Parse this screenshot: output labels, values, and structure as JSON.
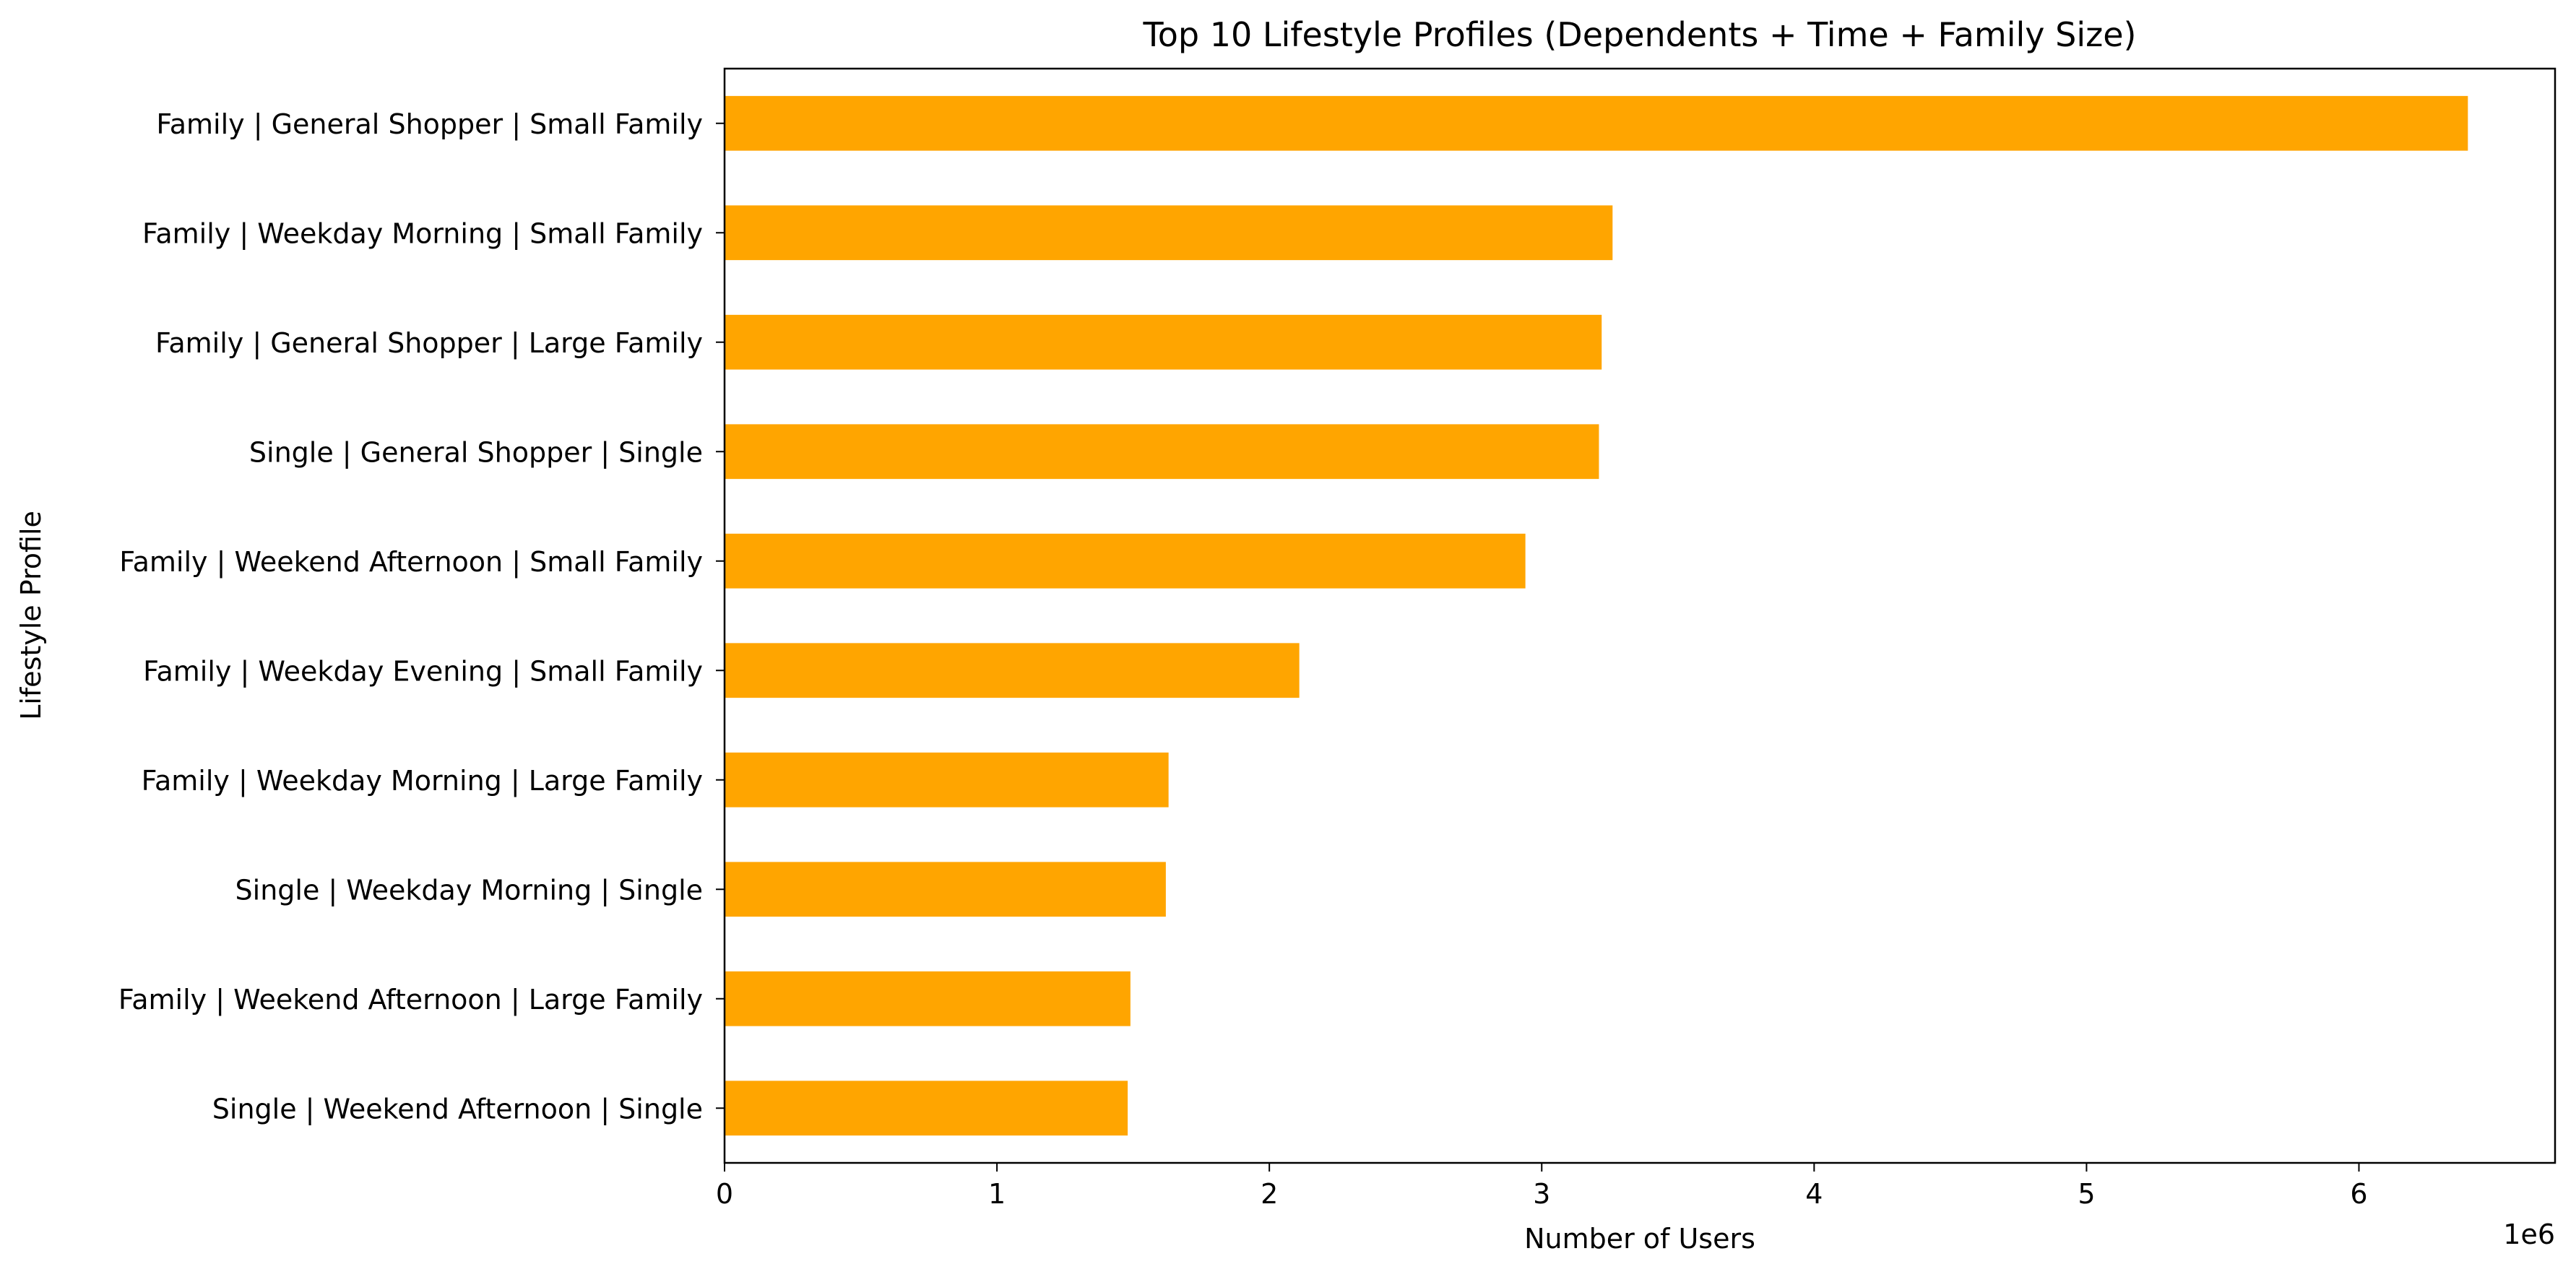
{
  "chart_data": {
    "type": "bar",
    "orientation": "horizontal",
    "title": "Top 10 Lifestyle Profiles (Dependents + Time + Family Size)",
    "xlabel": "Number of Users",
    "ylabel": "Lifestyle Profile",
    "x_scale_label": "1e6",
    "x_ticks": [
      "0",
      "1",
      "2",
      "3",
      "4",
      "5",
      "6"
    ],
    "xlim": [
      0,
      6.72
    ],
    "grid": false,
    "legend": "none",
    "bar_color": "#FFA500",
    "categories": [
      "Family | General Shopper | Small Family",
      "Family | Weekday Morning | Small Family",
      "Family | General Shopper | Large Family",
      "Single | General Shopper | Single",
      "Family | Weekend Afternoon | Small Family",
      "Family | Weekday Evening | Small Family",
      "Family | Weekday Morning | Large Family",
      "Single | Weekday Morning | Single",
      "Family | Weekend Afternoon | Large Family",
      "Single | Weekend Afternoon | Single"
    ],
    "values": [
      6.4,
      3.26,
      3.22,
      3.21,
      2.94,
      2.11,
      1.63,
      1.62,
      1.49,
      1.48
    ],
    "value_unit_multiplier": 1000000
  }
}
